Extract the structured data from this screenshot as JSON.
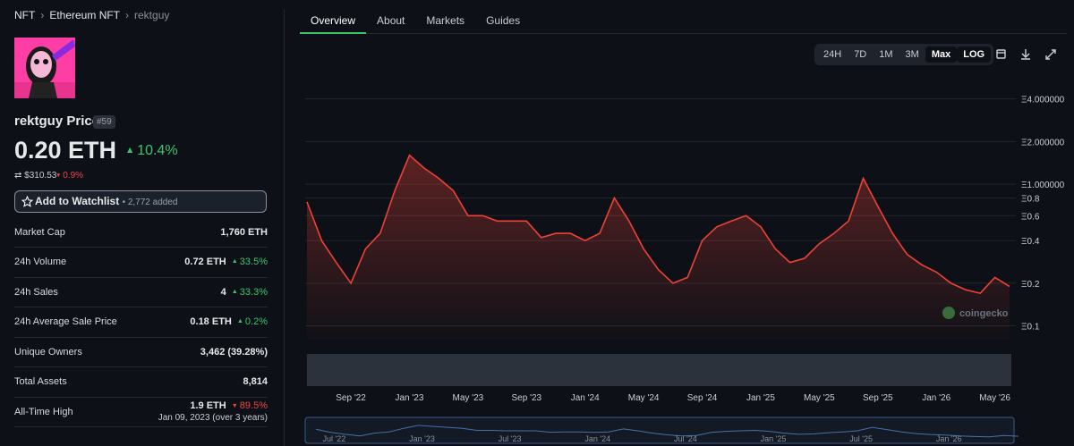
{
  "breadcrumb": [
    "NFT",
    "Ethereum NFT",
    "rektguy"
  ],
  "header": {
    "name": "rektguy Price",
    "rank": "#59",
    "price": "0.20 ETH",
    "change": "10.4%",
    "usd_price": "$310.53",
    "usd_change": "0.9%"
  },
  "watchlist": {
    "label": "Add to Watchlist",
    "count": "2,772 added"
  },
  "stats": [
    {
      "label": "Market Cap",
      "value": "1,760 ETH"
    },
    {
      "label": "24h Volume",
      "value": "0.72 ETH",
      "change": "33.5%"
    },
    {
      "label": "24h Sales",
      "value": "4",
      "change": "33.3%"
    },
    {
      "label": "24h Average Sale Price",
      "value": "0.18 ETH",
      "change": "0.2%"
    },
    {
      "label": "Unique Owners",
      "value": "3,462 (39.28%)"
    },
    {
      "label": "Total Assets",
      "value": "8,814"
    },
    {
      "label": "All-Time High",
      "value": "1.9 ETH",
      "change": "89.5%",
      "note": "Jan 09, 2023 (over 3 years)"
    }
  ],
  "tabs": [
    "Overview",
    "About",
    "Markets",
    "Guides"
  ],
  "ranges": [
    "24H",
    "7D",
    "1M",
    "3M",
    "Max",
    "LOG"
  ],
  "chart_data": {
    "type": "line",
    "log_scale": true,
    "color": "#ef4136",
    "watermark": "coingecko",
    "x": [
      "Jun '22",
      "Jul '22",
      "Aug '22",
      "Sep '22",
      "Oct '22",
      "Nov '22",
      "Dec '22",
      "Jan '23",
      "Feb '23",
      "Mar '23",
      "Apr '23",
      "May '23",
      "Jun '23",
      "Jul '23",
      "Aug '23",
      "Sep '23",
      "Oct '23",
      "Nov '23",
      "Dec '23",
      "Jan '24",
      "Feb '24",
      "Mar '24",
      "Apr '24",
      "May '24",
      "Jun '24",
      "Jul '24",
      "Aug '24",
      "Sep '24",
      "Oct '24",
      "Nov '24",
      "Dec '24",
      "Jan '25",
      "Feb '25",
      "Mar '25",
      "Apr '25",
      "May '25",
      "Jun '25",
      "Jul '25",
      "Aug '25",
      "Sep '25",
      "Oct '25",
      "Nov '25",
      "Dec '25",
      "Jan '26",
      "Feb '26",
      "Mar '26",
      "Apr '26",
      "May '26",
      "Jun '26"
    ],
    "values": [
      0.75,
      0.4,
      0.28,
      0.2,
      0.35,
      0.45,
      0.9,
      1.6,
      1.3,
      1.1,
      0.9,
      0.6,
      0.6,
      0.55,
      0.55,
      0.55,
      0.42,
      0.45,
      0.45,
      0.4,
      0.45,
      0.8,
      0.55,
      0.35,
      0.25,
      0.2,
      0.22,
      0.4,
      0.5,
      0.55,
      0.6,
      0.5,
      0.35,
      0.28,
      0.3,
      0.38,
      0.45,
      0.55,
      1.1,
      0.7,
      0.45,
      0.32,
      0.27,
      0.24,
      0.2,
      0.18,
      0.17,
      0.22,
      0.19
    ],
    "ylim": [
      0.08,
      5.4
    ],
    "yticks": [
      {
        "value": 4,
        "label": "Ξ4.000000"
      },
      {
        "value": 2,
        "label": "Ξ2.000000"
      },
      {
        "value": 1,
        "label": "Ξ1.000000"
      },
      {
        "value": 0.8,
        "label": "Ξ0.8"
      },
      {
        "value": 0.6,
        "label": "Ξ0.6"
      },
      {
        "value": 0.4,
        "label": "Ξ0.4"
      },
      {
        "value": 0.2,
        "label": "Ξ0.2"
      },
      {
        "value": 0.1,
        "label": "Ξ0.1"
      }
    ],
    "xticks": [
      "Sep '22",
      "Jan '23",
      "May '23",
      "Sep '23",
      "Jan '24",
      "May '24",
      "Sep '24",
      "Jan '25",
      "May '25",
      "Sep '25",
      "Jan '26",
      "May '26"
    ],
    "navigator_ticks": [
      "Jul '22",
      "Jan '23",
      "Jul '23",
      "Jan '24",
      "Jul '24",
      "Jan '25",
      "Jul '25",
      "Jan '26"
    ],
    "grid": true
  }
}
